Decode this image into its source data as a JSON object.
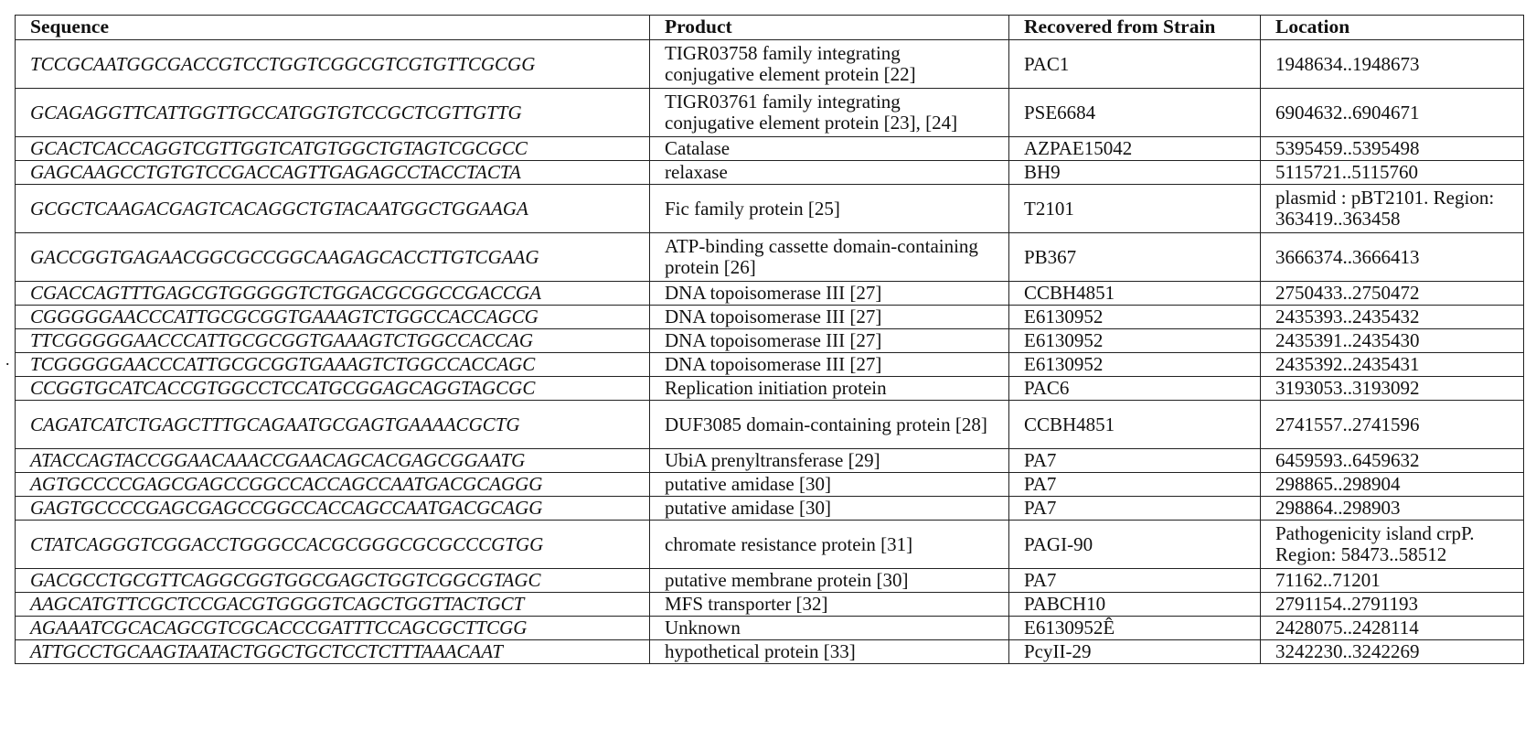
{
  "stray_mark": ".",
  "table": {
    "headers": [
      "Sequence",
      "Product",
      "Recovered from Strain",
      "Location"
    ],
    "rows": [
      {
        "seq": "TCCGCAATGGCGACCGTCCTGGTCGGCGTCGTGTTCGCGG",
        "product": "TIGR03758 family integrating conjugative element protein [22]",
        "strain": "PAC1",
        "location": "1948634..1948673",
        "tall": true
      },
      {
        "seq": "GCAGAGGTTCATTGGTTGCCATGGTGTCCGCTCGTTGTTG",
        "product": "TIGR03761 family integrating conjugative element protein [23], [24]",
        "strain": "PSE6684",
        "location": "6904632..6904671",
        "tall": true
      },
      {
        "seq": "GCACTCACCAGGTCGTTGGTCATGTGGCTGTAGTCGCGCC",
        "product": "Catalase",
        "strain": "AZPAE15042",
        "location": "5395459..5395498",
        "tall": false
      },
      {
        "seq": "GAGCAAGCCTGTGTCCGACCAGTTGAGAGCCTACCTACTA",
        "product": "relaxase",
        "strain": "BH9",
        "location": "5115721..5115760",
        "tall": false
      },
      {
        "seq": "GCGCTCAAGACGAGTCACAGGCTGTACAATGGCTGGAAGA",
        "product": "Fic family protein [25]",
        "strain": "T2101",
        "location": "plasmid : pBT2101. Region: 363419..363458",
        "tall": true
      },
      {
        "seq": "GACCGGTGAGAACGGCGCCGGCAAGAGCACCTTGTCGAAG",
        "product": "ATP-binding cassette domain-containing protein [26]",
        "strain": "PB367",
        "location": "3666374..3666413",
        "tall": true
      },
      {
        "seq": "CGACCAGTTTGAGCGTGGGGGTCTGGACGCGGCCGACCGA",
        "product": "DNA topoisomerase III [27]",
        "strain": "CCBH4851",
        "location": "2750433..2750472",
        "tall": false
      },
      {
        "seq": "CGGGGGAACCCATTGCGCGGTGAAAGTCTGGCCACCAGCG",
        "product": "DNA topoisomerase III [27]",
        "strain": "E6130952",
        "location": "2435393..2435432",
        "tall": false
      },
      {
        "seq": "TTCGGGGGAACCCATTGCGCGGTGAAAGTCTGGCCACCAG",
        "product": "DNA topoisomerase III [27]",
        "strain": "E6130952",
        "location": "2435391..2435430",
        "tall": false
      },
      {
        "seq": "TCGGGGGAACCCATTGCGCGGTGAAAGTCTGGCCACCAGC",
        "product": "DNA topoisomerase III [27]",
        "strain": "E6130952",
        "location": "2435392..2435431",
        "tall": false
      },
      {
        "seq": "CCGGTGCATCACCGTGGCCTCCATGCGGAGCAGGTAGCGC",
        "product": "Replication initiation protein",
        "strain": "PAC6",
        "location": "3193053..3193092",
        "tall": false
      },
      {
        "seq": "CAGATCATCTGAGCTTTGCAGAATGCGAGTGAAAACGCTG",
        "product": "DUF3085 domain-containing protein [28]",
        "strain": "CCBH4851",
        "location": "2741557..2741596",
        "tall": true
      },
      {
        "seq": "ATACCAGTACCGGAACAAACCGAACAGCACGAGCGGAATG",
        "product": "UbiA prenyltransferase [29]",
        "strain": "PA7",
        "location": "6459593..6459632",
        "tall": false
      },
      {
        "seq": "AGTGCCCCGAGCGAGCCGGCCACCAGCCAATGACGCAGGG",
        "product": "putative amidase [30]",
        "strain": "PA7",
        "location": "298865..298904",
        "tall": false
      },
      {
        "seq": "GAGTGCCCCGAGCGAGCCGGCCACCAGCCAATGACGCAGG",
        "product": "putative amidase [30]",
        "strain": "PA7",
        "location": "298864..298903",
        "tall": false
      },
      {
        "seq": "CTATCAGGGTCGGACCTGGGCCACGCGGGCGCGCCCGTGG",
        "product": "chromate resistance protein [31]",
        "strain": "PAGI-90",
        "location": "Pathogenicity island crpP. Region: 58473..58512",
        "tall": true
      },
      {
        "seq": "GACGCCTGCGTTCAGGCGGTGGCGAGCTGGTCGGCGTAGC",
        "product": "putative membrane protein [30]",
        "strain": "PA7",
        "location": "71162..71201",
        "tall": false
      },
      {
        "seq": "AAGCATGTTCGCTCCGACGTGGGGTCAGCTGGTTACTGCT",
        "product": "MFS transporter [32]",
        "strain": "PABCH10",
        "location": "2791154..2791193",
        "tall": false
      },
      {
        "seq": "AGAAATCGCACAGCGTCGCACCCGATTTCCAGCGCTTCGG",
        "product": "Unknown",
        "strain": "E6130952Ê",
        "location": "2428075..2428114",
        "tall": false
      },
      {
        "seq": "ATTGCCTGCAAGTAATACTGGCTGCTCCTCTTTAAACAAT",
        "product": "hypothetical protein [33]",
        "strain": "PcyII-29",
        "location": "3242230..3242269",
        "tall": false
      }
    ]
  }
}
